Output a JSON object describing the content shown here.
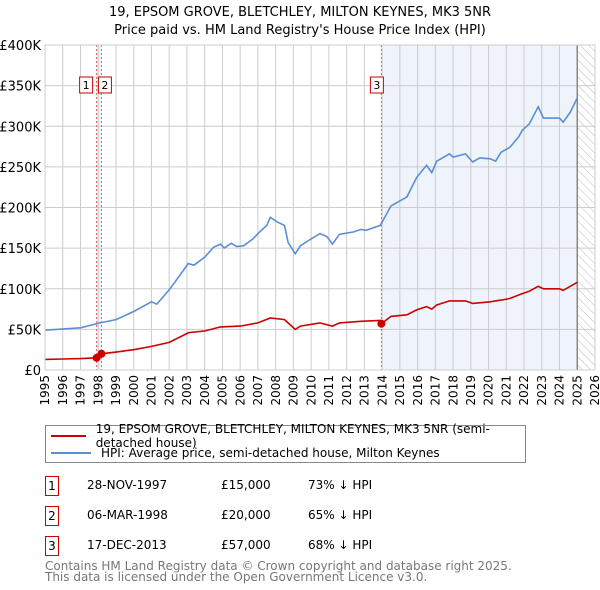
{
  "chart_data": {
    "type": "line",
    "title": "19, EPSOM GROVE, BLETCHLEY, MILTON KEYNES, MK3 5NR",
    "subtitle": "Price paid vs. HM Land Registry's House Price Index (HPI)",
    "xlabel": "",
    "ylabel": "",
    "xlim": [
      1995,
      2026
    ],
    "ylim": [
      0,
      400000
    ],
    "grid": true,
    "y_ticks": [
      {
        "v": 0,
        "label": "£0"
      },
      {
        "v": 50000,
        "label": "£50K"
      },
      {
        "v": 100000,
        "label": "£100K"
      },
      {
        "v": 150000,
        "label": "£150K"
      },
      {
        "v": 200000,
        "label": "£200K"
      },
      {
        "v": 250000,
        "label": "£250K"
      },
      {
        "v": 300000,
        "label": "£300K"
      },
      {
        "v": 350000,
        "label": "£350K"
      },
      {
        "v": 400000,
        "label": "£400K"
      }
    ],
    "x_ticks": [
      "1995",
      "1996",
      "1997",
      "1998",
      "1999",
      "2000",
      "2001",
      "2002",
      "2003",
      "2004",
      "2005",
      "2006",
      "2007",
      "2008",
      "2009",
      "2010",
      "2011",
      "2012",
      "2013",
      "2014",
      "2015",
      "2016",
      "2017",
      "2018",
      "2019",
      "2020",
      "2021",
      "2022",
      "2023",
      "2024",
      "2025",
      "2026"
    ],
    "shaded_regions": [
      [
        1997.91,
        1998.18
      ],
      [
        2013.96,
        2025.0
      ]
    ],
    "hatched_region": [
      2025.0,
      2026
    ],
    "series": [
      {
        "name": "19, EPSOM GROVE, BLETCHLEY, MILTON KEYNES, MK3 5NR (semi-detached house)",
        "color": "#cc0000",
        "x": [
          1995,
          1996,
          1997,
          1997.91,
          1998.18,
          1999,
          2000,
          2001,
          2002,
          2003.1,
          2004,
          2004.9,
          2006,
          2007,
          2007.7,
          2008.5,
          2009.1,
          2009.4,
          2010.5,
          2011.2,
          2011.6,
          2012.8,
          2013.9,
          2013.96,
          2014.5,
          2015.4,
          2015.95,
          2016.5,
          2016.8,
          2017.08,
          2017.8,
          2018.7,
          2019.1,
          2020.1,
          2020.7,
          2021.2,
          2021.9,
          2022.3,
          2022.8,
          2023.1,
          2024.0,
          2024.2,
          2025.0
        ],
        "y": [
          13000,
          13500,
          14000,
          15000,
          20000,
          22000,
          25000,
          29000,
          34000,
          46000,
          48000,
          53000,
          54000,
          58000,
          64000,
          62000,
          50000,
          54000,
          58000,
          54000,
          58000,
          60000,
          61000,
          57000,
          66000,
          68000,
          74000,
          78000,
          75000,
          80000,
          85000,
          85000,
          82000,
          84000,
          86000,
          88000,
          94000,
          97000,
          103000,
          100000,
          100000,
          98000,
          108000
        ]
      },
      {
        "name": "HPI: Average price, semi-detached house, Milton Keynes",
        "color": "#5b8fd4",
        "x": [
          1995,
          1997,
          1998.1,
          1999,
          2000,
          2001,
          2001.3,
          2002.05,
          2003.07,
          2003.4,
          2004,
          2004.5,
          2004.9,
          2005.1,
          2005.5,
          2005.8,
          2006.2,
          2006.7,
          2007.1,
          2007.5,
          2007.7,
          2008.1,
          2008.5,
          2008.7,
          2009.1,
          2009.4,
          2009.9,
          2010.5,
          2010.9,
          2011.2,
          2011.6,
          2012.4,
          2012.8,
          2013.1,
          2013.9,
          2014.5,
          2015.4,
          2015.95,
          2016.5,
          2016.8,
          2017.08,
          2017.8,
          2018.0,
          2018.7,
          2019.1,
          2019.5,
          2020.1,
          2020.4,
          2020.7,
          2021.2,
          2021.7,
          2021.9,
          2022.3,
          2022.8,
          2023.1,
          2024.0,
          2024.2,
          2024.6,
          2025.0
        ],
        "y": [
          49000,
          52000,
          58000,
          62000,
          72000,
          84000,
          81000,
          100000,
          131000,
          129000,
          139000,
          151000,
          155000,
          150000,
          156000,
          152000,
          153000,
          161000,
          170000,
          178000,
          188000,
          182000,
          178000,
          157000,
          143000,
          153000,
          160000,
          168000,
          164000,
          155000,
          167000,
          170000,
          173000,
          172000,
          178000,
          202000,
          213000,
          237000,
          252000,
          243000,
          257000,
          266000,
          262000,
          266000,
          256000,
          261000,
          260000,
          257000,
          268000,
          274000,
          287000,
          295000,
          303000,
          324000,
          310000,
          310000,
          305000,
          317000,
          335000
        ]
      }
    ],
    "sales": [
      {
        "id": "1",
        "x": 1997.91,
        "y": 15000
      },
      {
        "id": "2",
        "x": 1998.18,
        "y": 20000
      },
      {
        "id": "3",
        "x": 2013.96,
        "y": 57000
      }
    ],
    "legend_position": "below"
  },
  "legend": {
    "property": "19, EPSOM GROVE, BLETCHLEY, MILTON KEYNES, MK3 5NR (semi-detached house)",
    "hpi": "HPI: Average price, semi-detached house, Milton Keynes"
  },
  "transactions": [
    {
      "num": "1",
      "date": "28-NOV-1997",
      "price": "£15,000",
      "hpi": "73% ↓ HPI"
    },
    {
      "num": "2",
      "date": "06-MAR-1998",
      "price": "£20,000",
      "hpi": "65% ↓ HPI"
    },
    {
      "num": "3",
      "date": "17-DEC-2013",
      "price": "£57,000",
      "hpi": "68% ↓ HPI"
    }
  ],
  "footer": {
    "line1": "Contains HM Land Registry data © Crown copyright and database right 2025.",
    "line2": "This data is licensed under the Open Government Licence v3.0."
  },
  "colors": {
    "property": "#cc0000",
    "hpi": "#5b8fd4",
    "shade": "#eef3fc"
  }
}
